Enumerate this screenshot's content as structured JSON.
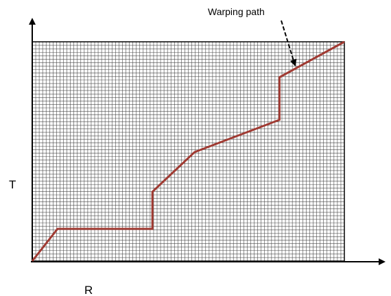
{
  "labels": {
    "y_axis": "T",
    "x_axis": "R",
    "annotation": "Warping path"
  },
  "colors": {
    "grid_line": "#4a4a4a",
    "axis": "#000000",
    "path": "#a03a32"
  },
  "grid": {
    "columns": 90,
    "rows": 63
  },
  "warping_path": {
    "description_points_fraction": [
      [
        0.0,
        1.0
      ],
      [
        0.081,
        0.853
      ],
      [
        0.385,
        0.853
      ],
      [
        0.385,
        0.684
      ],
      [
        0.52,
        0.503
      ],
      [
        0.792,
        0.356
      ],
      [
        0.792,
        0.162
      ],
      [
        1.0,
        0.0
      ]
    ]
  }
}
